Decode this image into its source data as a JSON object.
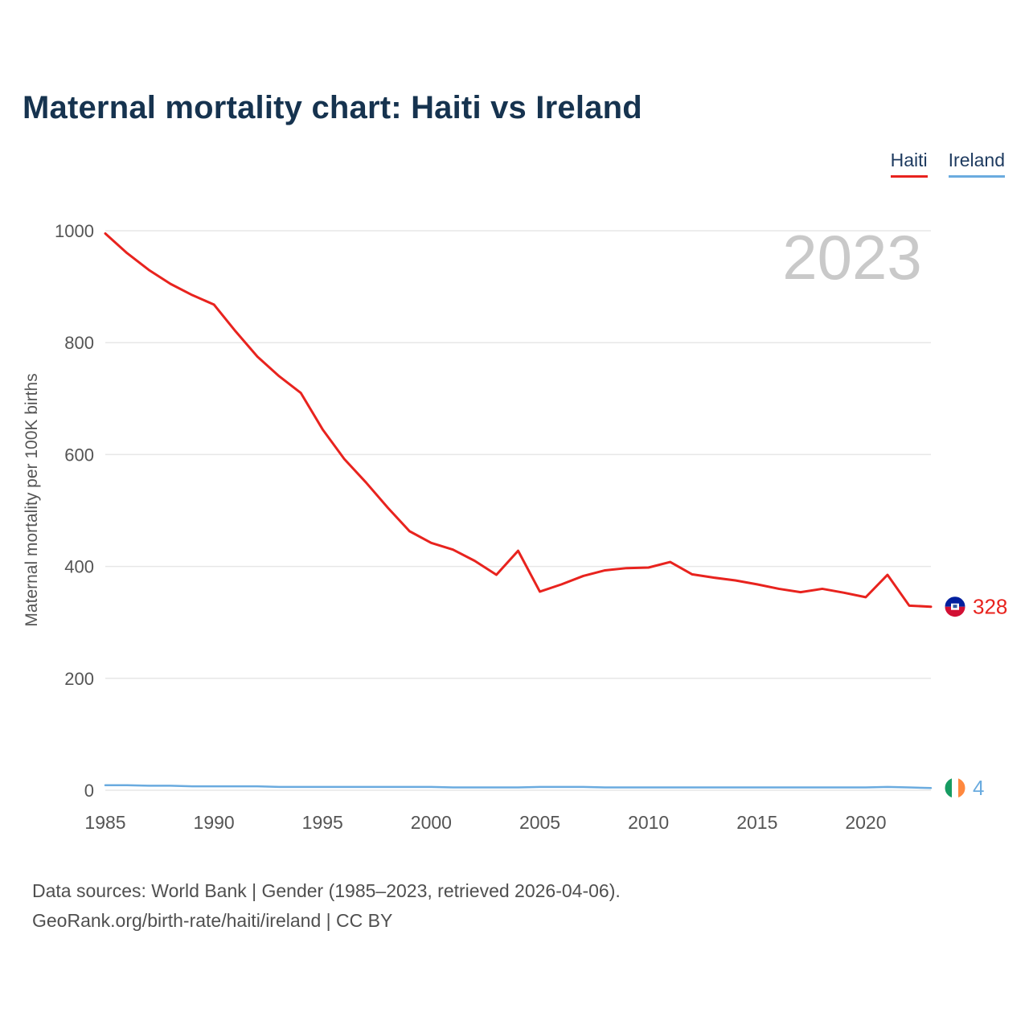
{
  "title": "Maternal mortality chart: Haiti vs Ireland",
  "watermark": "2023",
  "legend": {
    "haiti_label": "Haiti",
    "ireland_label": "Ireland"
  },
  "footer": {
    "line1": "Data sources: World Bank | Gender (1985–2023, retrieved 2026-04-06).",
    "line2": "GeoRank.org/birth-rate/haiti/ireland | CC BY"
  },
  "colors": {
    "haiti": "#e8231e",
    "ireland": "#6aabdf",
    "grid": "#e7e7e7",
    "axis_text": "#555555",
    "watermark": "#c9c9c9"
  },
  "chart_data": {
    "type": "line",
    "title": "Maternal mortality chart: Haiti vs Ireland",
    "xlabel": "",
    "ylabel": "Maternal mortality per 100K births",
    "ylim": [
      0,
      1000
    ],
    "yticks": [
      0,
      200,
      400,
      600,
      800,
      1000
    ],
    "xticks": [
      1985,
      1990,
      1995,
      2000,
      2005,
      2010,
      2015,
      2020
    ],
    "x": [
      1985,
      1986,
      1987,
      1988,
      1989,
      1990,
      1991,
      1992,
      1993,
      1994,
      1995,
      1996,
      1997,
      1998,
      1999,
      2000,
      2001,
      2002,
      2003,
      2004,
      2005,
      2006,
      2007,
      2008,
      2009,
      2010,
      2011,
      2012,
      2013,
      2014,
      2015,
      2016,
      2017,
      2018,
      2019,
      2020,
      2021,
      2022,
      2023
    ],
    "series": [
      {
        "name": "Haiti",
        "color": "#e8231e",
        "end_label": "328",
        "values": [
          995,
          960,
          930,
          905,
          885,
          868,
          820,
          775,
          740,
          710,
          645,
          592,
          550,
          505,
          463,
          442,
          430,
          410,
          385,
          428,
          355,
          368,
          383,
          393,
          397,
          398,
          408,
          386,
          380,
          375,
          368,
          360,
          354,
          360,
          353,
          345,
          385,
          330,
          328
        ]
      },
      {
        "name": "Ireland",
        "color": "#6aabdf",
        "end_label": "4",
        "values": [
          9,
          9,
          8,
          8,
          7,
          7,
          7,
          7,
          6,
          6,
          6,
          6,
          6,
          6,
          6,
          6,
          5,
          5,
          5,
          5,
          6,
          6,
          6,
          5,
          5,
          5,
          5,
          5,
          5,
          5,
          5,
          5,
          5,
          5,
          5,
          5,
          6,
          5,
          4
        ]
      }
    ],
    "legend_position": "top-right",
    "grid": "horizontal"
  }
}
